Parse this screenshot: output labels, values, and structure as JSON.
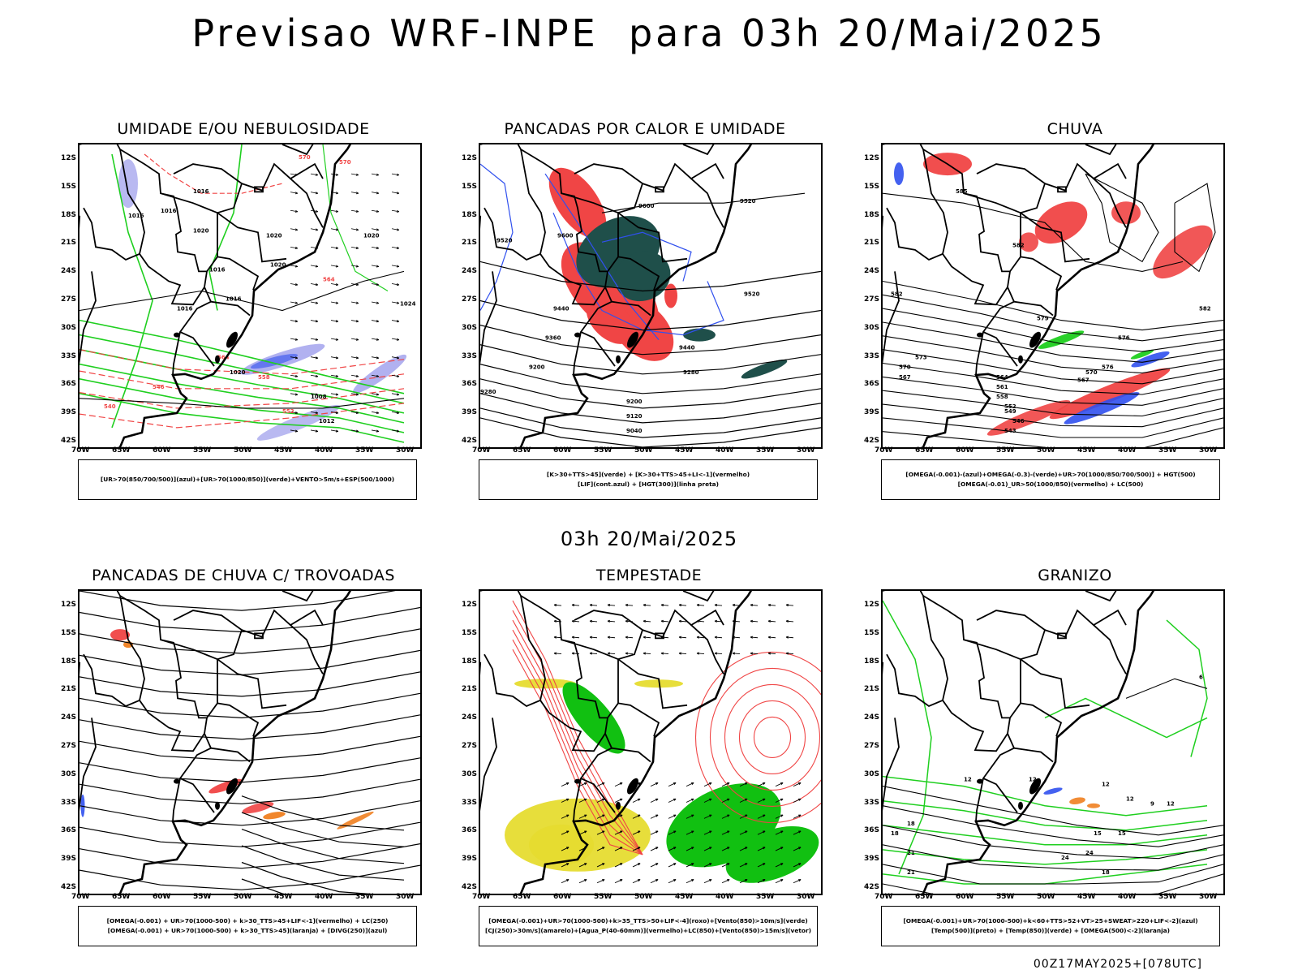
{
  "header": {
    "title": "Previsao WRF-INPE  para 03h 20/Mai/2025",
    "mid_date": "03h 20/Mai/2025",
    "footer": "00Z17MAY2025+[078UTC]"
  },
  "axes": {
    "lat_labels": [
      "12S",
      "15S",
      "18S",
      "21S",
      "24S",
      "27S",
      "30S",
      "33S",
      "36S",
      "39S",
      "42S"
    ],
    "lon_labels": [
      "70W",
      "65W",
      "60W",
      "55W",
      "50W",
      "45W",
      "40W",
      "35W",
      "30W"
    ]
  },
  "colors": {
    "green": "#1fcf1f",
    "red": "#f04545",
    "blue": "#3050ee",
    "lightblue": "#a8a8ee",
    "darkteal": "#1f4f4a",
    "yellow": "#e6dc30",
    "orange": "#f08020",
    "brightgreen": "#11c011"
  },
  "panels": [
    {
      "title": "UMIDADE E/OU NEBULOSIDADE",
      "legend": [
        "[UR>70(850/700/500)](azul)+[UR>70(1000/850)](verde)+VENTO>5m/s+ESP(500/1000)"
      ],
      "labels": [
        "1016",
        "1016",
        "1016",
        "1020",
        "1020",
        "1020",
        "1016",
        "1016",
        "1016",
        "1020",
        "1024",
        "1020",
        "1016",
        "1012",
        "1008",
        "570",
        "570",
        "564",
        "558",
        "552",
        "546",
        "540",
        "564"
      ]
    },
    {
      "title": "PANCADAS POR CALOR E UMIDADE",
      "legend": [
        "[K>30+TTS>45](verde) + [K>30+TTS>45+LI<-1](vermelho)",
        "[LIF](cont.azul) + [HGT(300)](linha preta)"
      ],
      "labels": [
        "9600",
        "9520",
        "9600",
        "9520",
        "9520",
        "9440",
        "9440",
        "9360",
        "9280",
        "9200",
        "9280",
        "9200",
        "9120",
        "9040"
      ]
    },
    {
      "title": "CHUVA",
      "legend": [
        "[OMEGA(-0.001)-(azul)+OMEGA(-0.3)-(verde)+UR>70(1000/850/700/500)] + HGT(500)",
        "[OMEGA(-0.01)_UR>50(1000/850)(vermelho) + LC(500)"
      ],
      "labels": [
        "585",
        "582",
        "582",
        "579",
        "576",
        "573",
        "570",
        "567",
        "564",
        "561",
        "558",
        "552",
        "549",
        "546",
        "543",
        "576",
        "570",
        "567",
        "582"
      ]
    },
    {
      "title": "PANCADAS DE CHUVA C/ TROVOADAS",
      "legend": [
        "[OMEGA(-0.001) + UR>70(1000-500) + k>30_TTS>45+LIF<-1](vermelho) + LC(250)",
        "[OMEGA(-0.001) + UR>70(1000-500) + k>30_TTS>45](laranja) + [DIVG(250)](azul)"
      ],
      "labels": []
    },
    {
      "title": "TEMPESTADE",
      "legend": [
        "[OMEGA(-0.001)+UR>70(1000-500)+k>35_TTS>50+LIF<-4](roxo)+[Vento(850)>10m/s](verde)",
        "[CJ(250)>30m/s](amarelo)+[Agua_P(40-60mm)](vermelho)+LC(850)+[Vento(850)>15m/s](vetor)"
      ],
      "labels": []
    },
    {
      "title": "GRANIZO",
      "legend": [
        "[OMEGA(-0.001)+UR>70(1000-500)+k<60+TTS>52+VT>25+SWEAT>220+LIF<-2](azul)",
        "[Temp(500)](preto) + [Temp(850)](verde) + [OMEGA(500)<-2](laranja)"
      ],
      "labels": [
        "12",
        "12",
        "12",
        "6",
        "9",
        "12",
        "15",
        "18",
        "18",
        "21",
        "24",
        "21",
        "24",
        "18",
        "15",
        "12"
      ]
    }
  ]
}
